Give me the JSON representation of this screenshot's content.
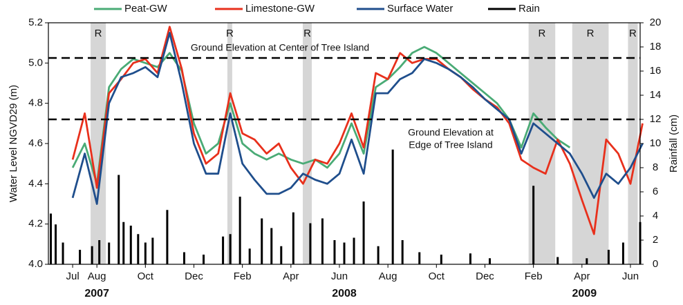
{
  "chart_data": {
    "type": "line",
    "ylabel": "Water Level NGVD29 (m)",
    "y2label": "Rainfall (cm)",
    "xlim": [
      -1,
      23.4
    ],
    "ylim": [
      4.0,
      5.2
    ],
    "y2lim": [
      0,
      20
    ],
    "yticks": [
      {
        "value": 4.0,
        "label": "4.0"
      },
      4.2,
      4.4,
      4.6,
      4.8,
      {
        "value": 5.0,
        "label": "5.0"
      },
      5.2
    ],
    "y2ticks": [
      0,
      2,
      4,
      6,
      8,
      10,
      12,
      14,
      16,
      18,
      20
    ],
    "xticks": [
      {
        "value": 0,
        "label": "Jul"
      },
      {
        "value": 1,
        "label": "Aug"
      },
      {
        "value": 3,
        "label": "Oct"
      },
      {
        "value": 5,
        "label": "Dec"
      },
      {
        "value": 7,
        "label": "Feb"
      },
      {
        "value": 9,
        "label": "Apr"
      },
      {
        "value": 11,
        "label": "Jun"
      },
      {
        "value": 13,
        "label": "Aug"
      },
      {
        "value": 15,
        "label": "Oct"
      },
      {
        "value": 17,
        "label": "Dec"
      },
      {
        "value": 19,
        "label": "Feb"
      },
      {
        "value": 21,
        "label": "Apr"
      },
      {
        "value": 23,
        "label": "Jun"
      }
    ],
    "year_labels": [
      {
        "value": 1,
        "label": "2007"
      },
      {
        "value": 11.2,
        "label": "2008"
      },
      {
        "value": 21.1,
        "label": "2009"
      }
    ],
    "shaded_regions": [
      {
        "label": "R",
        "x": [
          0.74,
          1.37
        ]
      },
      {
        "label": "R",
        "x": [
          6.38,
          6.58
        ]
      },
      {
        "label": "R",
        "x": [
          9.49,
          9.86
        ]
      },
      {
        "label": "R",
        "x": [
          18.8,
          19.9
        ]
      },
      {
        "label": "R",
        "x": [
          20.6,
          22.1
        ]
      },
      {
        "label": "R",
        "x": [
          22.9,
          23.3
        ]
      }
    ],
    "reference_lines": [
      {
        "value": 5.025,
        "label": [
          "Ground Elevation at Center of Tree Island"
        ]
      },
      {
        "value": 4.72,
        "label": [
          "Ground Elevation at",
          "Edge of Tree Island"
        ]
      }
    ],
    "x": [
      0,
      0.5,
      1,
      1.5,
      2,
      2.5,
      3,
      3.5,
      4,
      4.5,
      5,
      5.5,
      6,
      6.5,
      7,
      7.5,
      8,
      8.5,
      9,
      9.5,
      10,
      10.5,
      11,
      11.5,
      12,
      12.5,
      13,
      13.5,
      14,
      14.5,
      15,
      15.5,
      16,
      16.5,
      17,
      17.5,
      18,
      18.5,
      19,
      19.5,
      20,
      20.5,
      21,
      21.5,
      22,
      22.5,
      23,
      23.5
    ],
    "series": [
      {
        "name": "Peat-GW",
        "color": "#4aab76",
        "values": [
          4.48,
          4.6,
          4.4,
          4.88,
          4.97,
          5.02,
          5.0,
          4.98,
          5.05,
          4.96,
          4.7,
          4.55,
          4.6,
          4.8,
          4.6,
          4.55,
          4.52,
          4.55,
          4.52,
          4.5,
          4.52,
          4.48,
          4.55,
          4.7,
          4.55,
          4.88,
          4.92,
          4.98,
          5.05,
          5.08,
          5.05,
          5.0,
          4.95,
          4.9,
          4.85,
          4.8,
          4.72,
          4.58,
          4.75,
          4.68,
          4.62,
          4.58,
          null,
          null,
          null,
          null,
          null,
          null
        ]
      },
      {
        "name": "Limestone-GW",
        "color": "#e8301c",
        "values": [
          4.52,
          4.75,
          4.38,
          4.85,
          4.92,
          5.0,
          5.02,
          4.95,
          5.18,
          4.97,
          4.65,
          4.5,
          4.55,
          4.85,
          4.65,
          4.62,
          4.55,
          4.6,
          4.48,
          4.4,
          4.52,
          4.5,
          4.6,
          4.75,
          4.58,
          4.95,
          4.92,
          5.05,
          5.0,
          5.02,
          5.02,
          4.97,
          4.93,
          4.87,
          4.82,
          4.78,
          4.7,
          4.52,
          4.48,
          4.45,
          4.62,
          4.5,
          4.32,
          4.15,
          4.62,
          4.55,
          4.4,
          4.7
        ]
      },
      {
        "name": "Surface Water",
        "color": "#1f4e8c",
        "values": [
          4.33,
          4.55,
          4.3,
          4.8,
          4.93,
          4.95,
          4.98,
          4.93,
          5.15,
          4.9,
          4.6,
          4.45,
          4.45,
          4.75,
          4.5,
          4.42,
          4.35,
          4.35,
          4.38,
          4.45,
          4.42,
          4.4,
          4.45,
          4.62,
          4.45,
          4.85,
          4.85,
          4.92,
          4.95,
          5.02,
          5.0,
          4.97,
          4.93,
          4.88,
          4.82,
          4.77,
          4.72,
          4.55,
          4.7,
          4.65,
          4.6,
          4.55,
          4.45,
          4.33,
          4.45,
          4.4,
          4.48,
          4.6
        ]
      },
      {
        "name": "Rain",
        "color": "#000000",
        "type": "bar",
        "axis": "y2",
        "x": [
          -0.9,
          -0.7,
          -0.4,
          0.3,
          0.8,
          1.1,
          1.5,
          1.9,
          2.1,
          2.4,
          2.7,
          3.0,
          3.3,
          3.9,
          4.6,
          5.4,
          6.2,
          6.5,
          6.9,
          7.3,
          7.8,
          8.2,
          8.6,
          9.1,
          9.8,
          10.3,
          10.8,
          11.2,
          11.6,
          12.0,
          12.6,
          13.2,
          13.6,
          14.3,
          15.2,
          16.4,
          17.2,
          19.0,
          20.0,
          21.2,
          22.1,
          22.7,
          23.4
        ],
        "values": [
          4.2,
          3.3,
          1.8,
          1.2,
          1.5,
          2.0,
          1.8,
          7.4,
          3.5,
          3.2,
          2.5,
          1.8,
          2.2,
          4.5,
          1.0,
          0.8,
          2.3,
          2.5,
          5.6,
          1.3,
          3.8,
          3.0,
          1.5,
          4.3,
          3.4,
          3.8,
          2.0,
          1.8,
          2.2,
          5.2,
          1.5,
          9.5,
          2.0,
          1.0,
          0.8,
          0.9,
          0.5,
          6.5,
          0.6,
          0.5,
          1.2,
          1.8,
          3.5
        ]
      }
    ]
  }
}
